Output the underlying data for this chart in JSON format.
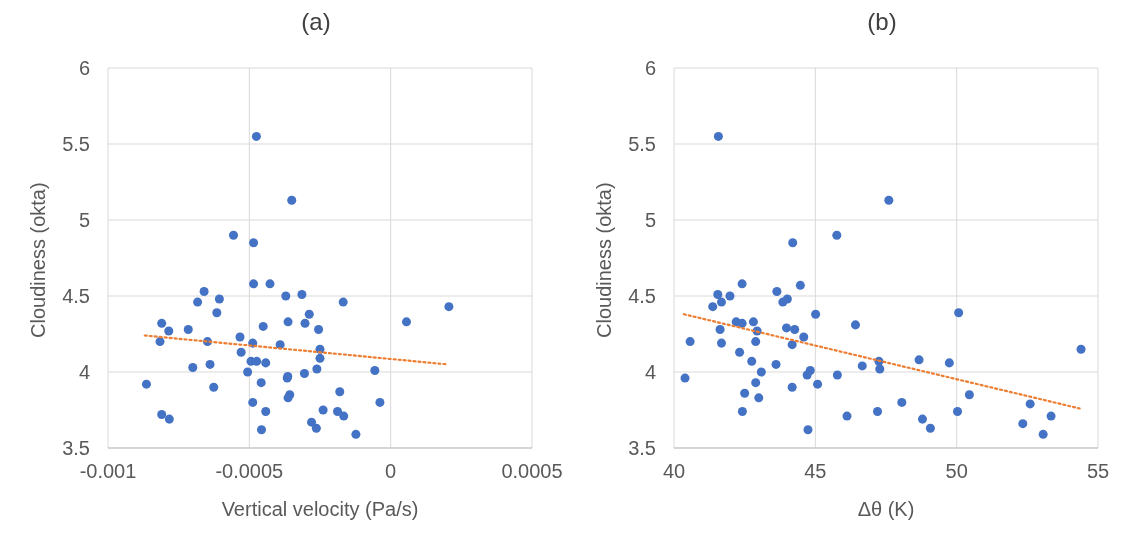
{
  "chart_data": [
    {
      "type": "scatter",
      "title": "(a)",
      "xlabel": "Vertical velocity  (Pa/s)",
      "ylabel": "Cloudiness (okta)",
      "xlim": [
        -0.001,
        0.0005
      ],
      "xticks": [
        -0.001,
        -0.0005,
        0,
        0.0005
      ],
      "ylim": [
        3.5,
        6
      ],
      "yticks": [
        3.5,
        4,
        4.5,
        5,
        5.5,
        6
      ],
      "grid": true,
      "series": [
        {
          "marker": "circle",
          "color": "#4472c4",
          "x": [
            -0.000475,
            -0.00035,
            -0.000556,
            -0.000485,
            -0.000485,
            -0.000427,
            -0.00066,
            -0.000683,
            -0.000606,
            -0.000371,
            -0.000314,
            -0.000168,
            -0.000615,
            -0.000288,
            -0.000363,
            -0.000303,
            -0.000255,
            -0.000451,
            0.000206,
            5.6e-05,
            -0.00081,
            -0.000785,
            -0.000716,
            -0.000816,
            -0.000648,
            -0.000533,
            -0.000488,
            -0.000391,
            -0.000529,
            -0.00025,
            -0.00025,
            -0.000494,
            -0.000474,
            -0.000442,
            -0.0007,
            -0.000639,
            -0.000506,
            -0.000261,
            -5.6e-05,
            -0.000364,
            -0.000366,
            -0.000305,
            -0.000864,
            -0.000458,
            -0.000626,
            -0.00018,
            -0.000357,
            -0.000363,
            -0.000488,
            -3.8e-05,
            -0.000442,
            -0.000239,
            -0.000188,
            -0.000166,
            -0.00081,
            -0.000783,
            -0.00028,
            -0.000263,
            -0.000457,
            -0.000123
          ],
          "values": [
            5.55,
            5.13,
            4.9,
            4.85,
            4.58,
            4.58,
            4.53,
            4.46,
            4.48,
            4.5,
            4.51,
            4.46,
            4.39,
            4.38,
            4.33,
            4.32,
            4.28,
            4.3,
            4.43,
            4.33,
            4.32,
            4.27,
            4.28,
            4.2,
            4.2,
            4.23,
            4.19,
            4.18,
            4.13,
            4.15,
            4.09,
            4.07,
            4.07,
            4.06,
            4.03,
            4.05,
            4.0,
            4.02,
            4.01,
            3.97,
            3.96,
            3.99,
            3.92,
            3.93,
            3.9,
            3.87,
            3.85,
            3.83,
            3.8,
            3.8,
            3.74,
            3.75,
            3.74,
            3.71,
            3.72,
            3.69,
            3.67,
            3.63,
            3.62,
            3.59
          ]
        },
        {
          "type": "line",
          "marker": "none",
          "line_style": "dotted",
          "color": "#ed7d31",
          "x": [
            -0.00087,
            0.000201
          ],
          "values": [
            4.24,
            4.05
          ]
        }
      ]
    },
    {
      "type": "scatter",
      "title": "(b)",
      "xlabel": "Δθ (K)",
      "ylabel": "Cloudiness (okta)",
      "xlim": [
        40,
        55
      ],
      "xticks": [
        40,
        45,
        50,
        55
      ],
      "ylim": [
        3.5,
        6
      ],
      "yticks": [
        3.5,
        4,
        4.5,
        5,
        5.5,
        6
      ],
      "grid": true,
      "series": [
        {
          "marker": "circle",
          "color": "#4472c4",
          "x": [
            41.57,
            47.6,
            45.76,
            44.2,
            42.41,
            44.47,
            41.55,
            41.98,
            43.64,
            44.01,
            43.85,
            41.37,
            41.68,
            45.01,
            50.07,
            42.2,
            42.41,
            42.81,
            46.42,
            41.63,
            42.94,
            43.98,
            44.27,
            44.59,
            40.57,
            41.68,
            42.89,
            44.18,
            42.32,
            42.75,
            43.61,
            43.09,
            46.66,
            47.25,
            47.28,
            48.67,
            49.74,
            44.82,
            44.71,
            45.78,
            40.39,
            42.89,
            45.08,
            44.18,
            42.5,
            50.45,
            43.0,
            48.06,
            52.6,
            50.03,
            42.42,
            47.2,
            46.12,
            53.34,
            48.79,
            49.07,
            52.34,
            44.74,
            53.06,
            54.4
          ],
          "values": [
            5.55,
            5.13,
            4.9,
            4.85,
            4.58,
            4.57,
            4.51,
            4.5,
            4.53,
            4.48,
            4.46,
            4.43,
            4.46,
            4.38,
            4.39,
            4.33,
            4.32,
            4.33,
            4.31,
            4.28,
            4.27,
            4.29,
            4.28,
            4.23,
            4.2,
            4.19,
            4.2,
            4.18,
            4.13,
            4.07,
            4.05,
            4.0,
            4.04,
            4.07,
            4.02,
            4.08,
            4.06,
            4.01,
            3.98,
            3.98,
            3.96,
            3.93,
            3.92,
            3.9,
            3.86,
            3.85,
            3.83,
            3.8,
            3.79,
            3.74,
            3.74,
            3.74,
            3.71,
            3.71,
            3.69,
            3.63,
            3.66,
            3.62,
            3.59,
            4.15
          ]
        },
        {
          "type": "line",
          "marker": "none",
          "line_style": "dotted",
          "color": "#ed7d31",
          "x": [
            40.35,
            54.35
          ],
          "values": [
            4.38,
            3.76
          ]
        }
      ]
    }
  ]
}
